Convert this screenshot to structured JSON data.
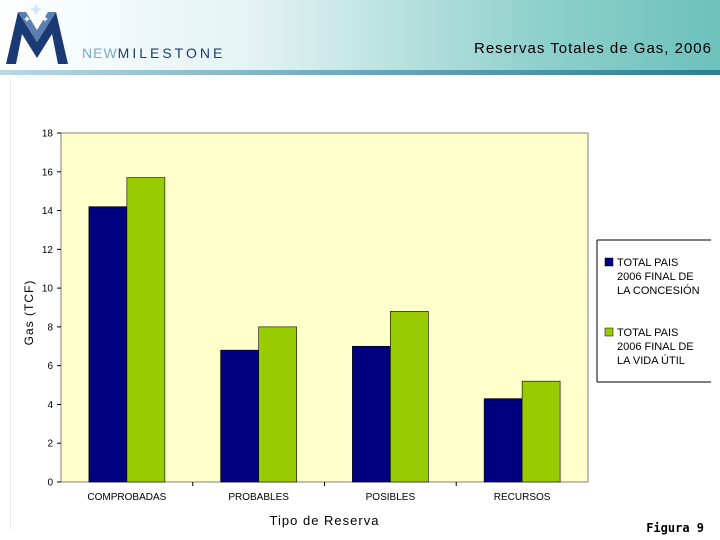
{
  "header": {
    "brand_new": "NEW",
    "brand_rest": "MILESTONE",
    "title": "Reservas Totales de  Gas, 2006"
  },
  "figure_label": "Figura 9",
  "colors": {
    "series_1": "#000080",
    "series_2": "#99cc00",
    "plot_background": "#ffffcc"
  },
  "chart_data": {
    "type": "bar",
    "title": "",
    "xlabel": "Tipo de Reserva",
    "ylabel": "Gas (TCF)",
    "ylim": [
      0,
      18
    ],
    "yticks": [
      "0",
      "2",
      "4",
      "6",
      "8",
      "10",
      "12",
      "14",
      "16",
      "18"
    ],
    "categories": [
      "COMPROBADAS",
      "PROBABLES",
      "POSIBLES",
      "RECURSOS"
    ],
    "series": [
      {
        "name": "TOTAL PAIS 2006 FINAL DE LA CONCESIÓN",
        "values": [
          14.2,
          6.8,
          7.0,
          4.3
        ]
      },
      {
        "name": "TOTAL PAIS 2006 FINAL DE LA VIDA ÚTIL",
        "values": [
          15.7,
          8.0,
          8.8,
          5.2
        ]
      }
    ],
    "legend_placement": "right",
    "grid": false
  }
}
